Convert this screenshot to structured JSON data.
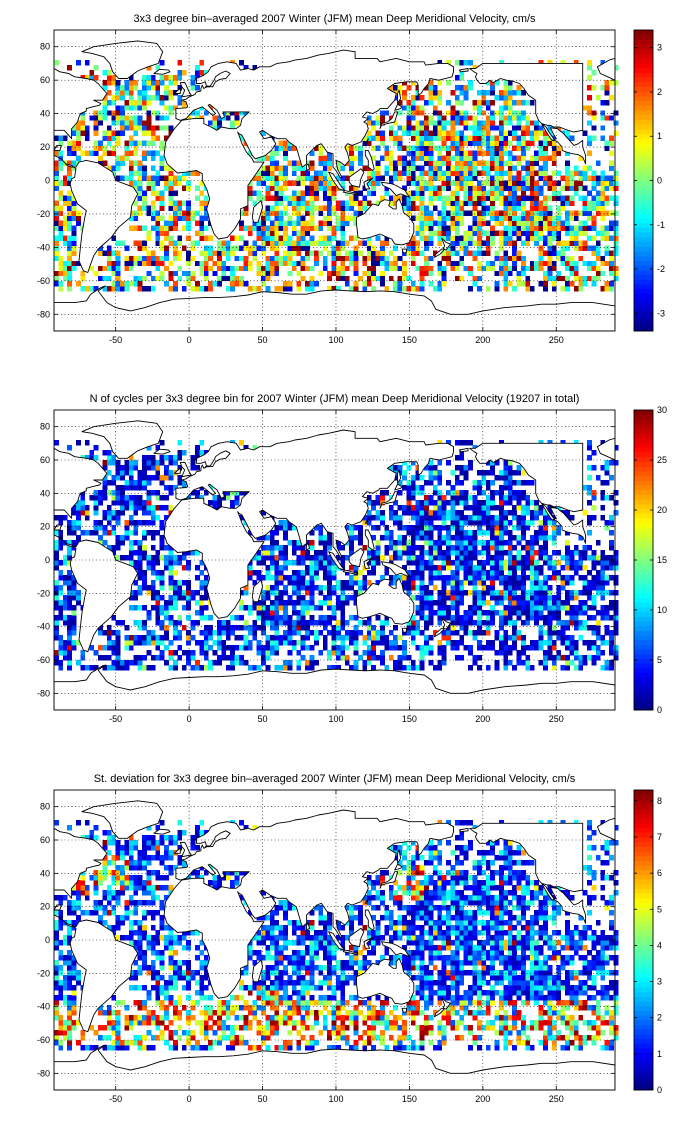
{
  "chart_data": [
    {
      "type": "heatmap",
      "title": "3x3 degree bin–averaged 2007 Winter (JFM) mean Deep Meridional Velocity, cm/s",
      "xlabel": "",
      "ylabel": "",
      "xlim": [
        -92,
        290
      ],
      "ylim": [
        -90,
        90
      ],
      "xticks": [
        -50,
        0,
        50,
        100,
        150,
        200,
        250
      ],
      "yticks": [
        80,
        60,
        40,
        20,
        0,
        -20,
        -40,
        -60,
        -80
      ],
      "grid": true,
      "bin_size_deg": 3,
      "colorbar": {
        "min": -3.4,
        "max": 3.4,
        "ticks": [
          3,
          2,
          1,
          0,
          -1,
          -2,
          -3
        ],
        "colormap": "jet"
      },
      "value_pattern": "noisy",
      "seed": 11
    },
    {
      "type": "heatmap",
      "title": "N of cycles per 3x3 degree bin for 2007 Winter (JFM) mean Deep Meridional Velocity (19207 in total)",
      "xlabel": "",
      "ylabel": "",
      "xlim": [
        -92,
        290
      ],
      "ylim": [
        -90,
        90
      ],
      "xticks": [
        -50,
        0,
        50,
        100,
        150,
        200,
        250
      ],
      "yticks": [
        80,
        60,
        40,
        20,
        0,
        -20,
        -40,
        -60,
        -80
      ],
      "grid": true,
      "bin_size_deg": 3,
      "colorbar": {
        "min": 0,
        "max": 30,
        "ticks": [
          30,
          25,
          20,
          15,
          10,
          5,
          0
        ],
        "colormap": "jet"
      },
      "value_pattern": "counts",
      "seed": 11
    },
    {
      "type": "heatmap",
      "title": "St. deviation for 3x3 degree bin–averaged 2007 Winter (JFM) mean Deep Meridional Velocity, cm/s",
      "xlabel": "",
      "ylabel": "",
      "xlim": [
        -92,
        290
      ],
      "ylim": [
        -90,
        90
      ],
      "xticks": [
        -50,
        0,
        50,
        100,
        150,
        200,
        250
      ],
      "yticks": [
        80,
        60,
        40,
        20,
        0,
        -20,
        -40,
        -60,
        -80
      ],
      "grid": true,
      "bin_size_deg": 3,
      "colorbar": {
        "min": 0,
        "max": 8.3,
        "ticks": [
          8,
          7,
          6,
          5,
          4,
          3,
          2,
          1,
          0
        ],
        "colormap": "jet"
      },
      "value_pattern": "stdev",
      "seed": 11
    }
  ]
}
